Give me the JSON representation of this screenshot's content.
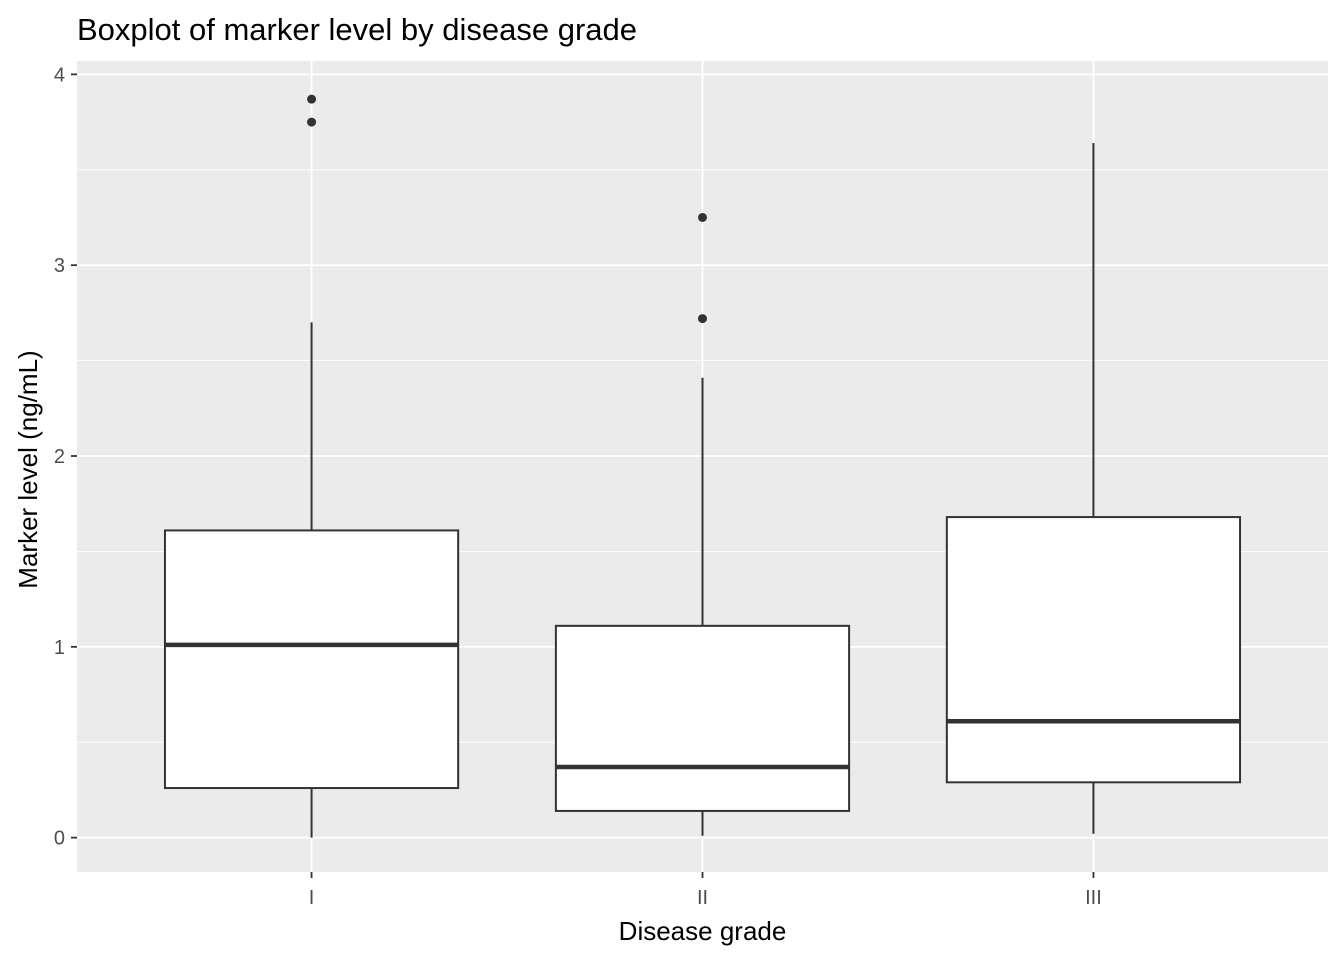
{
  "chart_data": {
    "type": "boxplot",
    "title": "Boxplot of marker level by disease grade",
    "xlabel": "Disease grade",
    "ylabel": "Marker level (ng/mL)",
    "categories": [
      "I",
      "II",
      "III"
    ],
    "ylim": [
      -0.18,
      4.07
    ],
    "yticks": [
      0,
      1,
      2,
      3,
      4
    ],
    "boxes": [
      {
        "category": "I",
        "whisker_low": 0.0,
        "q1": 0.26,
        "median": 1.01,
        "q3": 1.61,
        "whisker_high": 2.7,
        "outliers": [
          3.75,
          3.87
        ]
      },
      {
        "category": "II",
        "whisker_low": 0.01,
        "q1": 0.14,
        "median": 0.37,
        "q3": 1.11,
        "whisker_high": 2.41,
        "outliers": [
          2.72,
          3.25
        ]
      },
      {
        "category": "III",
        "whisker_low": 0.02,
        "q1": 0.29,
        "median": 0.61,
        "q3": 1.68,
        "whisker_high": 3.64,
        "outliers": []
      }
    ],
    "grid": true,
    "colors": {
      "panel": "#ebebeb",
      "grid": "#ffffff",
      "box_fill": "#ffffff",
      "box_line": "#333333",
      "tick_text": "#4d4d4d"
    }
  }
}
